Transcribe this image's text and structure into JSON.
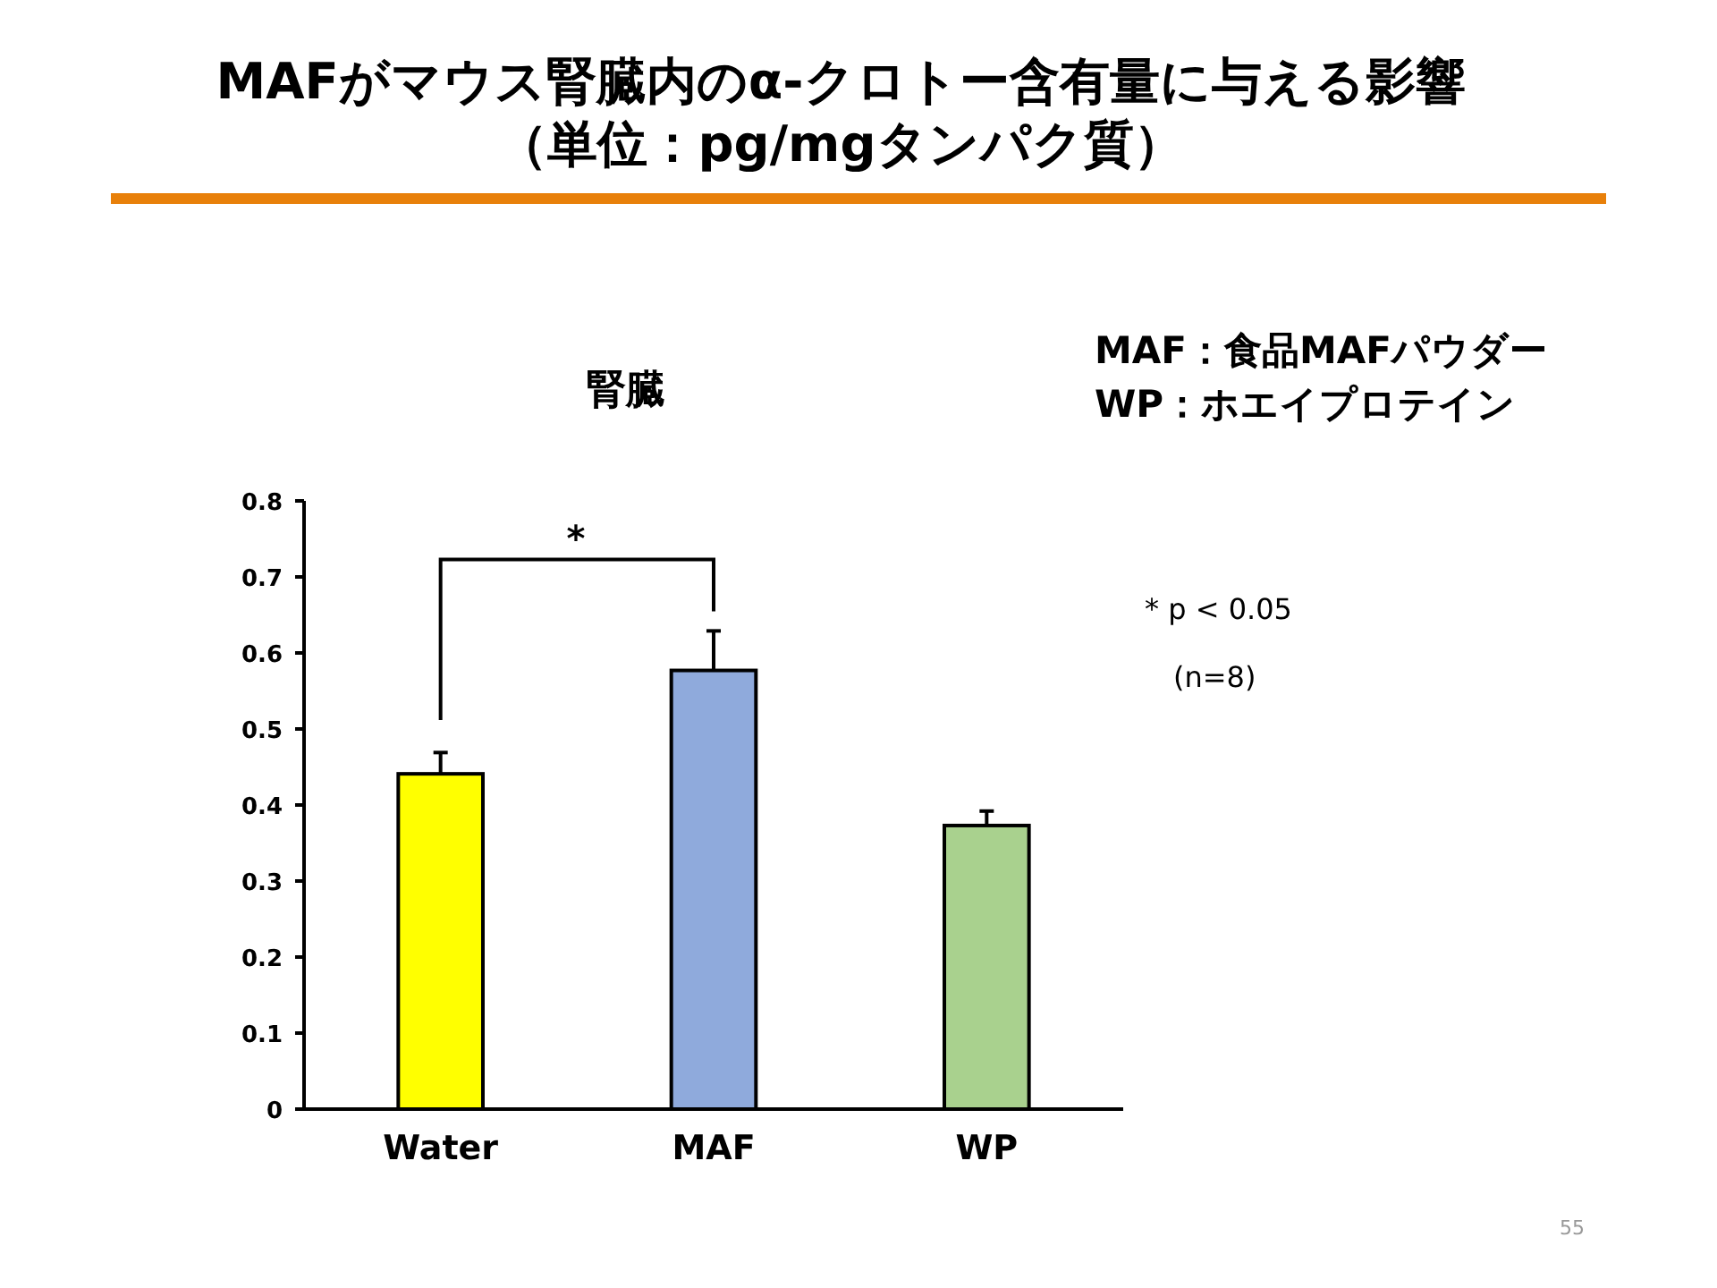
{
  "chart_data": {
    "type": "bar",
    "title": "MAFがマウス腎臓内のα-クロトー含有量に与える影響",
    "subtitle": "（単位：pg/mgタンパク質）",
    "categories": [
      "Water",
      "MAF",
      "WP"
    ],
    "values": [
      0.441,
      0.577,
      0.373
    ],
    "colors": [
      "#ffff00",
      "#8faadc",
      "#a9d18e"
    ],
    "errors": [
      [
        0.441,
        0.469
      ],
      [
        0.577,
        0.629
      ],
      [
        0.373,
        0.392
      ]
    ],
    "ylim": [
      0,
      0.8
    ],
    "yticks": [
      0,
      0.1,
      0.2,
      0.3,
      0.4,
      0.5,
      0.6,
      0.7,
      0.8
    ],
    "grid": false,
    "annotations": [
      "腎臓",
      "MAF：食品MAFパウダー",
      "WP：ホエイプロテイン",
      "* p < 0.05",
      "(n=8)",
      "*",
      "55"
    ]
  }
}
